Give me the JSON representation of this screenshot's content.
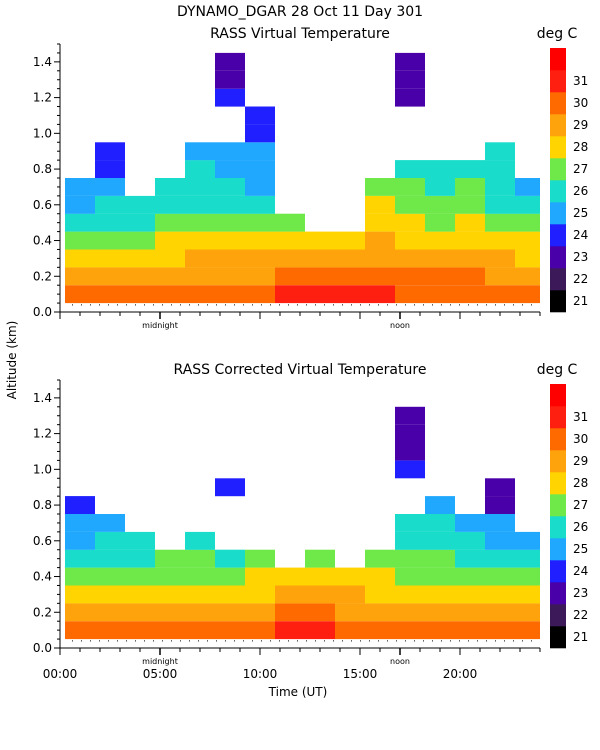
{
  "figure": {
    "suptitle": "DYNAMO_DGAR  28 Oct 11 Day 301",
    "shared_ylabel": "Altitude (km)",
    "shared_xlabel": "Time (UT)"
  },
  "colors": {
    "white_gap": "#ffffff",
    "axis": "#000000"
  },
  "chart_data": [
    {
      "type": "heatmap",
      "title": "RASS Virtual Temperature",
      "units": "deg C",
      "xlabel": "",
      "ylabel": "Altitude (km)",
      "xlim": [
        0,
        24
      ],
      "ylim": [
        0,
        1.5
      ],
      "yticks": [
        "0.0",
        "0.2",
        "0.4",
        "0.6",
        "0.8",
        "1.0",
        "1.2",
        "1.4"
      ],
      "xtick_labels": [],
      "time_markers": [
        {
          "label": "midnight",
          "hour": 5
        },
        {
          "label": "noon",
          "hour": 17
        }
      ],
      "colorbar": {
        "labels": [
          "21",
          "22",
          "23",
          "24",
          "25",
          "26",
          "27",
          "28",
          "29",
          "30",
          "31"
        ],
        "colors": [
          "#000000",
          "#3c1a5a",
          "#4a00a8",
          "#1f1fff",
          "#20a8ff",
          "#19dccb",
          "#6fe84a",
          "#ffd400",
          "#ffa30c",
          "#ff6a00",
          "#ff1f10",
          "#ff0000"
        ]
      },
      "altitudes_km": [
        0.1,
        0.2,
        0.3,
        0.4,
        0.5,
        0.6,
        0.7,
        0.8,
        0.9,
        1.0,
        1.1,
        1.2,
        1.3,
        1.4,
        1.5
      ],
      "profile_hours": [
        1.0,
        2.5,
        4.0,
        5.5,
        7.0,
        8.5,
        10.0,
        11.5,
        13.0,
        14.5,
        16.0,
        17.5,
        19.0,
        20.5,
        22.0,
        23.5
      ],
      "temperatures_degC": [
        [
          29.5,
          28.4,
          27.5,
          26.5,
          25.5,
          24.8,
          24.5,
          null,
          null,
          null,
          null,
          null,
          null,
          null,
          null
        ],
        [
          29.4,
          28.5,
          27.6,
          26.6,
          25.8,
          25.0,
          24.3,
          23.8,
          23.6,
          null,
          null,
          null,
          null,
          null,
          null
        ],
        [
          29.8,
          28.7,
          27.8,
          26.8,
          25.9,
          25.3,
          null,
          null,
          null,
          null,
          null,
          null,
          null,
          null,
          null
        ],
        [
          29.6,
          28.8,
          27.9,
          27.2,
          26.1,
          25.4,
          25.0,
          null,
          null,
          null,
          null,
          null,
          null,
          null,
          null
        ],
        [
          29.9,
          28.8,
          28.1,
          27.4,
          26.4,
          25.6,
          25.2,
          25.0,
          24.6,
          null,
          null,
          null,
          null,
          null,
          null
        ],
        [
          29.7,
          28.6,
          28.0,
          27.2,
          26.2,
          25.4,
          25.0,
          24.6,
          24.0,
          null,
          null,
          23.0,
          22.8,
          22.6,
          null
        ],
        [
          29.9,
          28.9,
          28.3,
          27.3,
          26.3,
          25.4,
          24.8,
          24.5,
          24.2,
          23.8,
          23.2,
          null,
          null,
          null,
          null
        ],
        [
          30.2,
          29.0,
          28.4,
          27.4,
          26.5,
          null,
          null,
          null,
          null,
          null,
          null,
          null,
          null,
          null,
          null
        ],
        [
          30.4,
          29.3,
          28.5,
          27.5,
          null,
          null,
          null,
          null,
          null,
          null,
          null,
          null,
          null,
          null,
          null
        ],
        [
          30.1,
          29.1,
          28.5,
          27.8,
          null,
          null,
          null,
          null,
          null,
          null,
          null,
          null,
          null,
          null,
          null
        ],
        [
          30.0,
          29.1,
          28.4,
          28.0,
          27.4,
          27.2,
          26.6,
          null,
          null,
          null,
          null,
          null,
          null,
          null,
          null
        ],
        [
          29.8,
          29.2,
          28.6,
          27.8,
          27.2,
          26.6,
          26.1,
          25.6,
          null,
          null,
          null,
          22.4,
          22.2,
          22.0,
          null
        ],
        [
          29.6,
          29.0,
          28.4,
          27.6,
          26.8,
          26.2,
          25.8,
          25.3,
          null,
          null,
          null,
          null,
          null,
          null,
          null
        ],
        [
          29.7,
          29.1,
          28.5,
          27.8,
          27.2,
          26.5,
          26.0,
          25.6,
          null,
          null,
          null,
          null,
          null,
          null,
          null
        ],
        [
          29.4,
          28.8,
          28.0,
          27.4,
          26.6,
          25.8,
          25.2,
          25.0,
          25.6,
          null,
          null,
          null,
          null,
          null,
          null
        ],
        [
          29.3,
          28.6,
          27.8,
          27.1,
          26.0,
          25.3,
          24.9,
          null,
          null,
          null,
          null,
          null,
          null,
          null,
          null
        ]
      ]
    },
    {
      "type": "heatmap",
      "title": "RASS Corrected Virtual Temperature",
      "units": "deg C",
      "xlabel": "Time (UT)",
      "ylabel": "Altitude (km)",
      "xlim": [
        0,
        24
      ],
      "ylim": [
        0,
        1.5
      ],
      "yticks": [
        "0.0",
        "0.2",
        "0.4",
        "0.6",
        "0.8",
        "1.0",
        "1.2",
        "1.4"
      ],
      "xtick_labels": [
        "00:00",
        "05:00",
        "10:00",
        "15:00",
        "20:00"
      ],
      "time_markers": [
        {
          "label": "midnight",
          "hour": 5
        },
        {
          "label": "noon",
          "hour": 17
        }
      ],
      "colorbar": {
        "labels": [
          "21",
          "22",
          "23",
          "24",
          "25",
          "26",
          "27",
          "28",
          "29",
          "30",
          "31"
        ],
        "colors": [
          "#000000",
          "#3c1a5a",
          "#4a00a8",
          "#1f1fff",
          "#20a8ff",
          "#19dccb",
          "#6fe84a",
          "#ffd400",
          "#ffa30c",
          "#ff6a00",
          "#ff1f10",
          "#ff0000"
        ]
      },
      "altitudes_km": [
        0.1,
        0.2,
        0.3,
        0.4,
        0.5,
        0.6,
        0.7,
        0.8,
        0.9,
        1.0,
        1.1,
        1.2,
        1.3,
        1.4,
        1.5
      ],
      "profile_hours": [
        1.0,
        2.5,
        4.0,
        5.5,
        7.0,
        8.5,
        10.0,
        11.5,
        13.0,
        14.5,
        16.0,
        17.5,
        19.0,
        20.5,
        22.0,
        23.5
      ],
      "temperatures_degC": [
        [
          29.4,
          28.3,
          27.4,
          26.5,
          25.6,
          24.6,
          24.2,
          23.2,
          null,
          null,
          null,
          null,
          null,
          null,
          null
        ],
        [
          29.3,
          28.4,
          27.5,
          26.6,
          25.6,
          25.0,
          24.4,
          null,
          null,
          null,
          null,
          null,
          null,
          null,
          null
        ],
        [
          29.5,
          28.5,
          27.6,
          26.7,
          25.8,
          25.1,
          null,
          null,
          null,
          null,
          null,
          null,
          null,
          null,
          null
        ],
        [
          29.5,
          28.6,
          27.7,
          26.8,
          26.0,
          null,
          null,
          null,
          null,
          null,
          null,
          null,
          null,
          null,
          null
        ],
        [
          29.6,
          28.6,
          27.8,
          26.9,
          26.0,
          25.4,
          null,
          null,
          null,
          null,
          null,
          null,
          null,
          null,
          null
        ],
        [
          29.5,
          28.5,
          27.7,
          26.8,
          25.9,
          null,
          null,
          null,
          23.4,
          null,
          null,
          null,
          null,
          null,
          null
        ],
        [
          29.8,
          28.8,
          27.9,
          27.0,
          26.1,
          null,
          null,
          null,
          null,
          null,
          null,
          null,
          null,
          null,
          null
        ],
        [
          30.1,
          29.0,
          28.1,
          27.2,
          null,
          null,
          null,
          null,
          null,
          null,
          null,
          null,
          null,
          null,
          null
        ],
        [
          30.3,
          29.1,
          28.2,
          27.4,
          26.0,
          null,
          null,
          null,
          null,
          null,
          null,
          null,
          null,
          null,
          null
        ],
        [
          29.8,
          28.9,
          28.1,
          27.4,
          null,
          null,
          null,
          null,
          null,
          null,
          null,
          null,
          null,
          null,
          null
        ],
        [
          29.6,
          28.8,
          27.9,
          27.2,
          26.6,
          null,
          null,
          null,
          null,
          null,
          null,
          null,
          null,
          null,
          null
        ],
        [
          29.4,
          28.6,
          27.8,
          26.9,
          26.2,
          25.8,
          25.6,
          null,
          null,
          23.0,
          22.8,
          22.6,
          22.4,
          null,
          null
        ],
        [
          29.3,
          28.4,
          27.6,
          26.8,
          26.0,
          25.4,
          25.0,
          24.8,
          null,
          null,
          null,
          null,
          null,
          null,
          null
        ],
        [
          29.2,
          28.3,
          27.5,
          26.6,
          25.8,
          25.2,
          24.6,
          null,
          null,
          null,
          null,
          null,
          null,
          null,
          null
        ],
        [
          29.1,
          28.2,
          27.4,
          26.4,
          25.6,
          24.8,
          24.0,
          22.8,
          22.6,
          null,
          null,
          null,
          null,
          null,
          null
        ],
        [
          29.0,
          28.0,
          27.2,
          26.2,
          25.4,
          24.8,
          null,
          null,
          null,
          null,
          null,
          null,
          null,
          null,
          null
        ]
      ]
    }
  ]
}
